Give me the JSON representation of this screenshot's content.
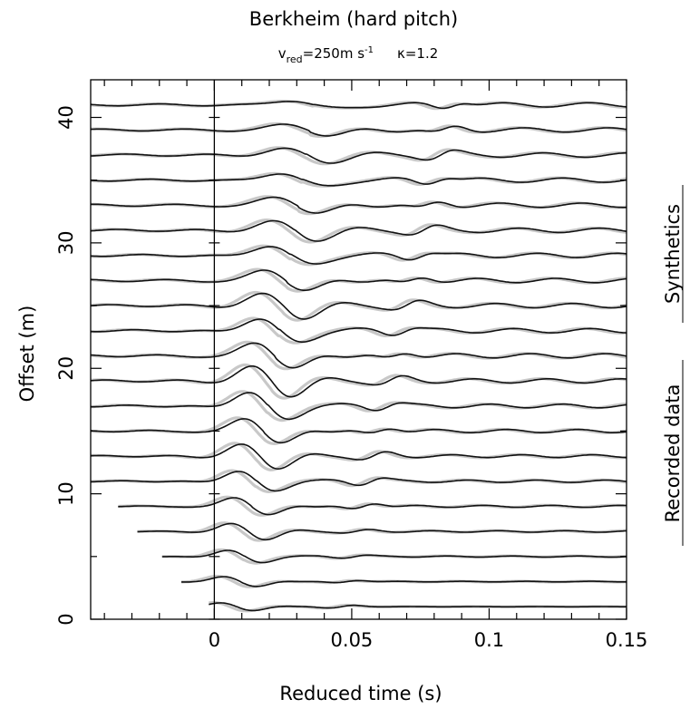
{
  "chart_data": {
    "type": "line",
    "title": "Berkheim (hard pitch)",
    "subtitle": {
      "vred_symbol": "v",
      "vred_subscript": "red",
      "vred_value": "=250m s",
      "vred_exponent": "-1",
      "kappa": "κ=1.2"
    },
    "xlabel": "Reduced time (s)",
    "ylabel": "Offset (m)",
    "xlim": [
      -0.045,
      0.15
    ],
    "ylim": [
      0,
      43
    ],
    "x_ticks": [
      {
        "value": 0,
        "label": "0"
      },
      {
        "value": 0.05,
        "label": "0.05"
      },
      {
        "value": 0.1,
        "label": "0.1"
      },
      {
        "value": 0.15,
        "label": "0.15"
      }
    ],
    "x_minor_step": 0.01,
    "y_ticks": [
      {
        "value": 0,
        "label": "0"
      },
      {
        "value": 10,
        "label": "10"
      },
      {
        "value": 20,
        "label": "20"
      },
      {
        "value": 30,
        "label": "30"
      },
      {
        "value": 40,
        "label": "40"
      }
    ],
    "y_minor_step": 5,
    "offsets": [
      1,
      3,
      5,
      7,
      9,
      11,
      13,
      15,
      17,
      19,
      21,
      23,
      25,
      27,
      29,
      31,
      33,
      35,
      37,
      39,
      41
    ],
    "trace_start_times": [
      -0.002,
      -0.012,
      -0.019,
      -0.028,
      -0.035,
      -0.045,
      -0.045,
      -0.045,
      -0.045,
      -0.045,
      -0.045,
      -0.045,
      -0.045,
      -0.045,
      -0.045,
      -0.045,
      -0.045,
      -0.045,
      -0.045,
      -0.045,
      -0.045
    ],
    "series": [
      {
        "name": "Synthetics",
        "color": "#111111"
      },
      {
        "name": "Recorded data",
        "color": "#c8c8c8"
      }
    ],
    "zero_line": 0
  }
}
